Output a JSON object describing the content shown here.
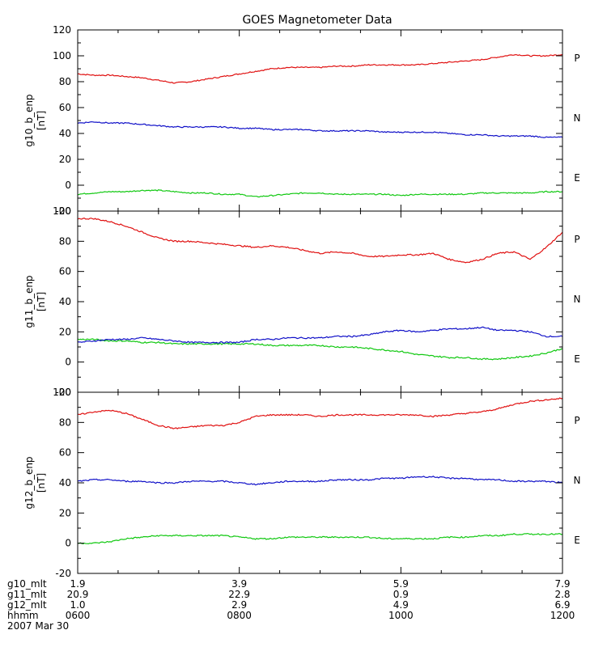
{
  "chart_data": {
    "type": "line",
    "title": "GOES Magnetometer Data",
    "date_label": "2007 Mar 30",
    "colors": {
      "P": "#e01010",
      "N": "#10c810",
      "E": "#1010c8",
      "axis": "#000000"
    },
    "x": {
      "label": "hhmm",
      "range": [
        600,
        1200
      ],
      "ticks": [
        "0600",
        "0800",
        "1000",
        "1200"
      ]
    },
    "panels": [
      {
        "ylabel": "g10_b_enp",
        "yunit": "[nT]",
        "ylim": [
          -20,
          120
        ],
        "yticks": [
          "-20",
          "0",
          "20",
          "40",
          "60",
          "80",
          "100",
          "120"
        ],
        "legend": [
          "P",
          "N",
          "E"
        ],
        "series": [
          {
            "name": "P",
            "x": [
              600,
              620,
              640,
              660,
              680,
              700,
              720,
              740,
              760,
              780,
              800,
              820,
              840,
              860,
              880,
              900,
              920,
              940,
              960,
              980,
              1000,
              1020,
              1040,
              1060,
              1080,
              1100,
              1120,
              1140,
              1160,
              1180,
              1200
            ],
            "values": [
              86,
              85,
              85,
              84,
              83,
              81,
              79,
              80,
              82,
              84,
              86,
              88,
              90,
              91,
              91,
              91,
              92,
              92,
              93,
              93,
              93,
              93,
              94,
              95,
              96,
              97,
              99,
              101,
              100,
              100,
              101
            ]
          },
          {
            "name": "N",
            "x": [
              600,
              620,
              640,
              660,
              680,
              700,
              720,
              740,
              760,
              780,
              800,
              820,
              840,
              860,
              880,
              900,
              920,
              940,
              960,
              980,
              1000,
              1020,
              1040,
              1060,
              1080,
              1100,
              1120,
              1140,
              1160,
              1180,
              1200
            ],
            "values": [
              -7,
              -6,
              -5,
              -5,
              -4,
              -4,
              -5,
              -6,
              -6,
              -7,
              -7,
              -9,
              -8,
              -7,
              -6,
              -6,
              -7,
              -7,
              -7,
              -7,
              -8,
              -7,
              -7,
              -7,
              -7,
              -6,
              -6,
              -6,
              -6,
              -5,
              -5
            ]
          },
          {
            "name": "E",
            "x": [
              600,
              620,
              640,
              660,
              680,
              700,
              720,
              740,
              760,
              780,
              800,
              820,
              840,
              860,
              880,
              900,
              920,
              940,
              960,
              980,
              1000,
              1020,
              1040,
              1060,
              1080,
              1100,
              1120,
              1140,
              1160,
              1180,
              1200
            ],
            "values": [
              48,
              49,
              48,
              48,
              47,
              46,
              45,
              45,
              45,
              45,
              44,
              44,
              43,
              43,
              43,
              42,
              42,
              42,
              42,
              41,
              41,
              41,
              41,
              40,
              39,
              39,
              38,
              38,
              38,
              37,
              37
            ]
          }
        ]
      },
      {
        "ylabel": "g11_b_enp",
        "yunit": "[nT]",
        "ylim": [
          -20,
          100
        ],
        "yticks": [
          "-20",
          "0",
          "20",
          "40",
          "60",
          "80",
          "100"
        ],
        "legend": [
          "P",
          "N",
          "E"
        ],
        "series": [
          {
            "name": "P",
            "x": [
              600,
              620,
              640,
              660,
              680,
              700,
              720,
              740,
              760,
              780,
              800,
              820,
              840,
              860,
              880,
              900,
              920,
              940,
              960,
              980,
              1000,
              1020,
              1040,
              1060,
              1080,
              1100,
              1120,
              1140,
              1160,
              1180,
              1200
            ],
            "values": [
              95,
              95,
              93,
              90,
              86,
              82,
              80,
              80,
              79,
              78,
              77,
              76,
              77,
              76,
              74,
              72,
              73,
              72,
              70,
              70,
              71,
              71,
              72,
              68,
              66,
              68,
              72,
              73,
              68,
              76,
              86
            ]
          },
          {
            "name": "N",
            "x": [
              600,
              620,
              640,
              660,
              680,
              700,
              720,
              740,
              760,
              780,
              800,
              820,
              840,
              860,
              880,
              900,
              920,
              940,
              960,
              980,
              1000,
              1020,
              1040,
              1060,
              1080,
              1100,
              1120,
              1140,
              1160,
              1180,
              1200
            ],
            "values": [
              15,
              15,
              14,
              14,
              13,
              13,
              12,
              12,
              12,
              12,
              12,
              12,
              11,
              11,
              11,
              11,
              10,
              10,
              9,
              8,
              7,
              5,
              4,
              3,
              3,
              2,
              2,
              3,
              4,
              6,
              9
            ]
          },
          {
            "name": "E",
            "x": [
              600,
              620,
              640,
              660,
              680,
              700,
              720,
              740,
              760,
              780,
              800,
              820,
              840,
              860,
              880,
              900,
              920,
              940,
              960,
              980,
              1000,
              1020,
              1040,
              1060,
              1080,
              1100,
              1120,
              1140,
              1160,
              1180,
              1200
            ],
            "values": [
              13,
              14,
              15,
              15,
              16,
              15,
              14,
              13,
              13,
              13,
              13,
              15,
              15,
              16,
              16,
              16,
              17,
              17,
              18,
              20,
              21,
              20,
              21,
              22,
              22,
              23,
              21,
              21,
              20,
              17,
              17
            ]
          }
        ]
      },
      {
        "ylabel": "g12_b_enp",
        "yunit": "[nT]",
        "ylim": [
          -20,
          100
        ],
        "yticks": [
          "-20",
          "0",
          "20",
          "40",
          "60",
          "80",
          "100"
        ],
        "legend": [
          "P",
          "N",
          "E"
        ],
        "series": [
          {
            "name": "P",
            "x": [
              600,
              620,
              640,
              660,
              680,
              700,
              720,
              740,
              760,
              780,
              800,
              820,
              840,
              860,
              880,
              900,
              920,
              940,
              960,
              980,
              1000,
              1020,
              1040,
              1060,
              1080,
              1100,
              1120,
              1140,
              1160,
              1180,
              1200
            ],
            "values": [
              85,
              87,
              88,
              86,
              82,
              78,
              76,
              77,
              78,
              78,
              80,
              84,
              85,
              85,
              85,
              84,
              85,
              85,
              85,
              85,
              85,
              85,
              84,
              85,
              86,
              87,
              89,
              92,
              94,
              95,
              96
            ]
          },
          {
            "name": "N",
            "x": [
              600,
              620,
              640,
              660,
              680,
              700,
              720,
              740,
              760,
              780,
              800,
              820,
              840,
              860,
              880,
              900,
              920,
              940,
              960,
              980,
              1000,
              1020,
              1040,
              1060,
              1080,
              1100,
              1120,
              1140,
              1160,
              1180,
              1200
            ],
            "values": [
              0,
              0,
              1,
              3,
              4,
              5,
              5,
              5,
              5,
              5,
              4,
              3,
              3,
              4,
              4,
              4,
              4,
              4,
              4,
              3,
              3,
              3,
              3,
              4,
              4,
              5,
              5,
              6,
              6,
              6,
              6
            ]
          },
          {
            "name": "E",
            "x": [
              600,
              620,
              640,
              660,
              680,
              700,
              720,
              740,
              760,
              780,
              800,
              820,
              840,
              860,
              880,
              900,
              920,
              940,
              960,
              980,
              1000,
              1020,
              1040,
              1060,
              1080,
              1100,
              1120,
              1140,
              1160,
              1180,
              1200
            ],
            "values": [
              41,
              42,
              42,
              41,
              41,
              40,
              40,
              41,
              41,
              41,
              40,
              39,
              40,
              41,
              41,
              41,
              42,
              42,
              42,
              43,
              43,
              44,
              44,
              43,
              43,
              42,
              42,
              41,
              41,
              41,
              40
            ]
          }
        ]
      }
    ],
    "footer_rows": [
      {
        "label": "g10_mlt",
        "values": [
          "1.9",
          "3.9",
          "5.9",
          "7.9"
        ]
      },
      {
        "label": "g11_mlt",
        "values": [
          "20.9",
          "22.9",
          "0.9",
          "2.8"
        ]
      },
      {
        "label": "g12_mlt",
        "values": [
          "1.0",
          "2.9",
          "4.9",
          "6.9"
        ]
      },
      {
        "label": "hhmm",
        "values": [
          "0600",
          "0800",
          "1000",
          "1200"
        ]
      }
    ]
  }
}
